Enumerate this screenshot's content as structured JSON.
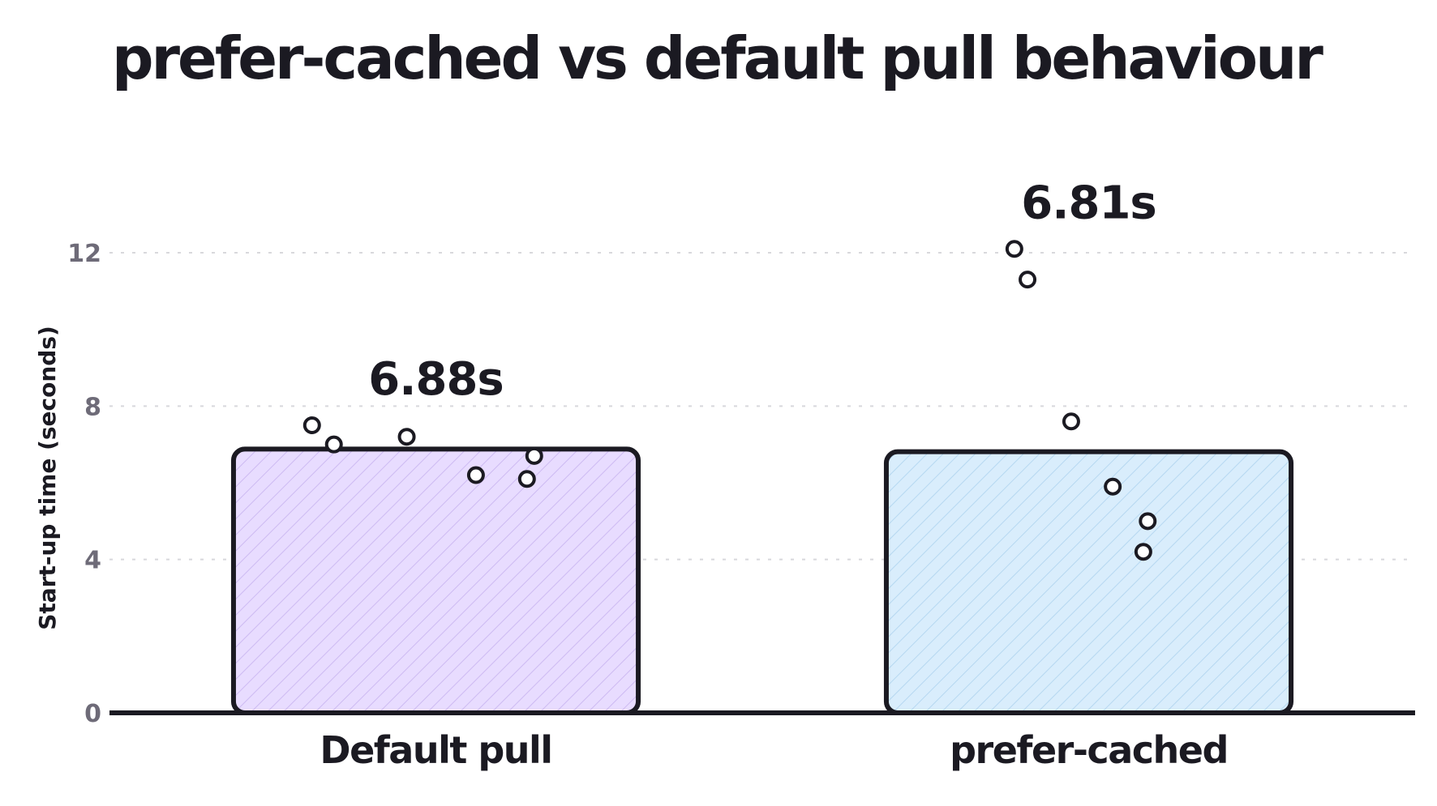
{
  "chart_data": {
    "type": "bar",
    "title": "prefer-cached vs default pull behaviour",
    "ylabel": "Start-up time (seconds)",
    "xlabel": "",
    "ylim": [
      0,
      15
    ],
    "yticks": [
      0,
      4,
      8,
      12
    ],
    "grid": true,
    "categories": [
      "Default pull",
      "prefer-cached"
    ],
    "values": [
      6.88,
      6.81
    ],
    "value_labels": [
      "6.88s",
      "6.81s"
    ],
    "colors": [
      "#e8dcff",
      "#d9edfc"
    ],
    "points": [
      [
        7.5,
        7.0,
        7.2,
        6.2,
        6.7,
        6.1
      ],
      [
        12.1,
        11.3,
        7.6,
        5.9,
        5.0,
        4.2
      ]
    ]
  }
}
